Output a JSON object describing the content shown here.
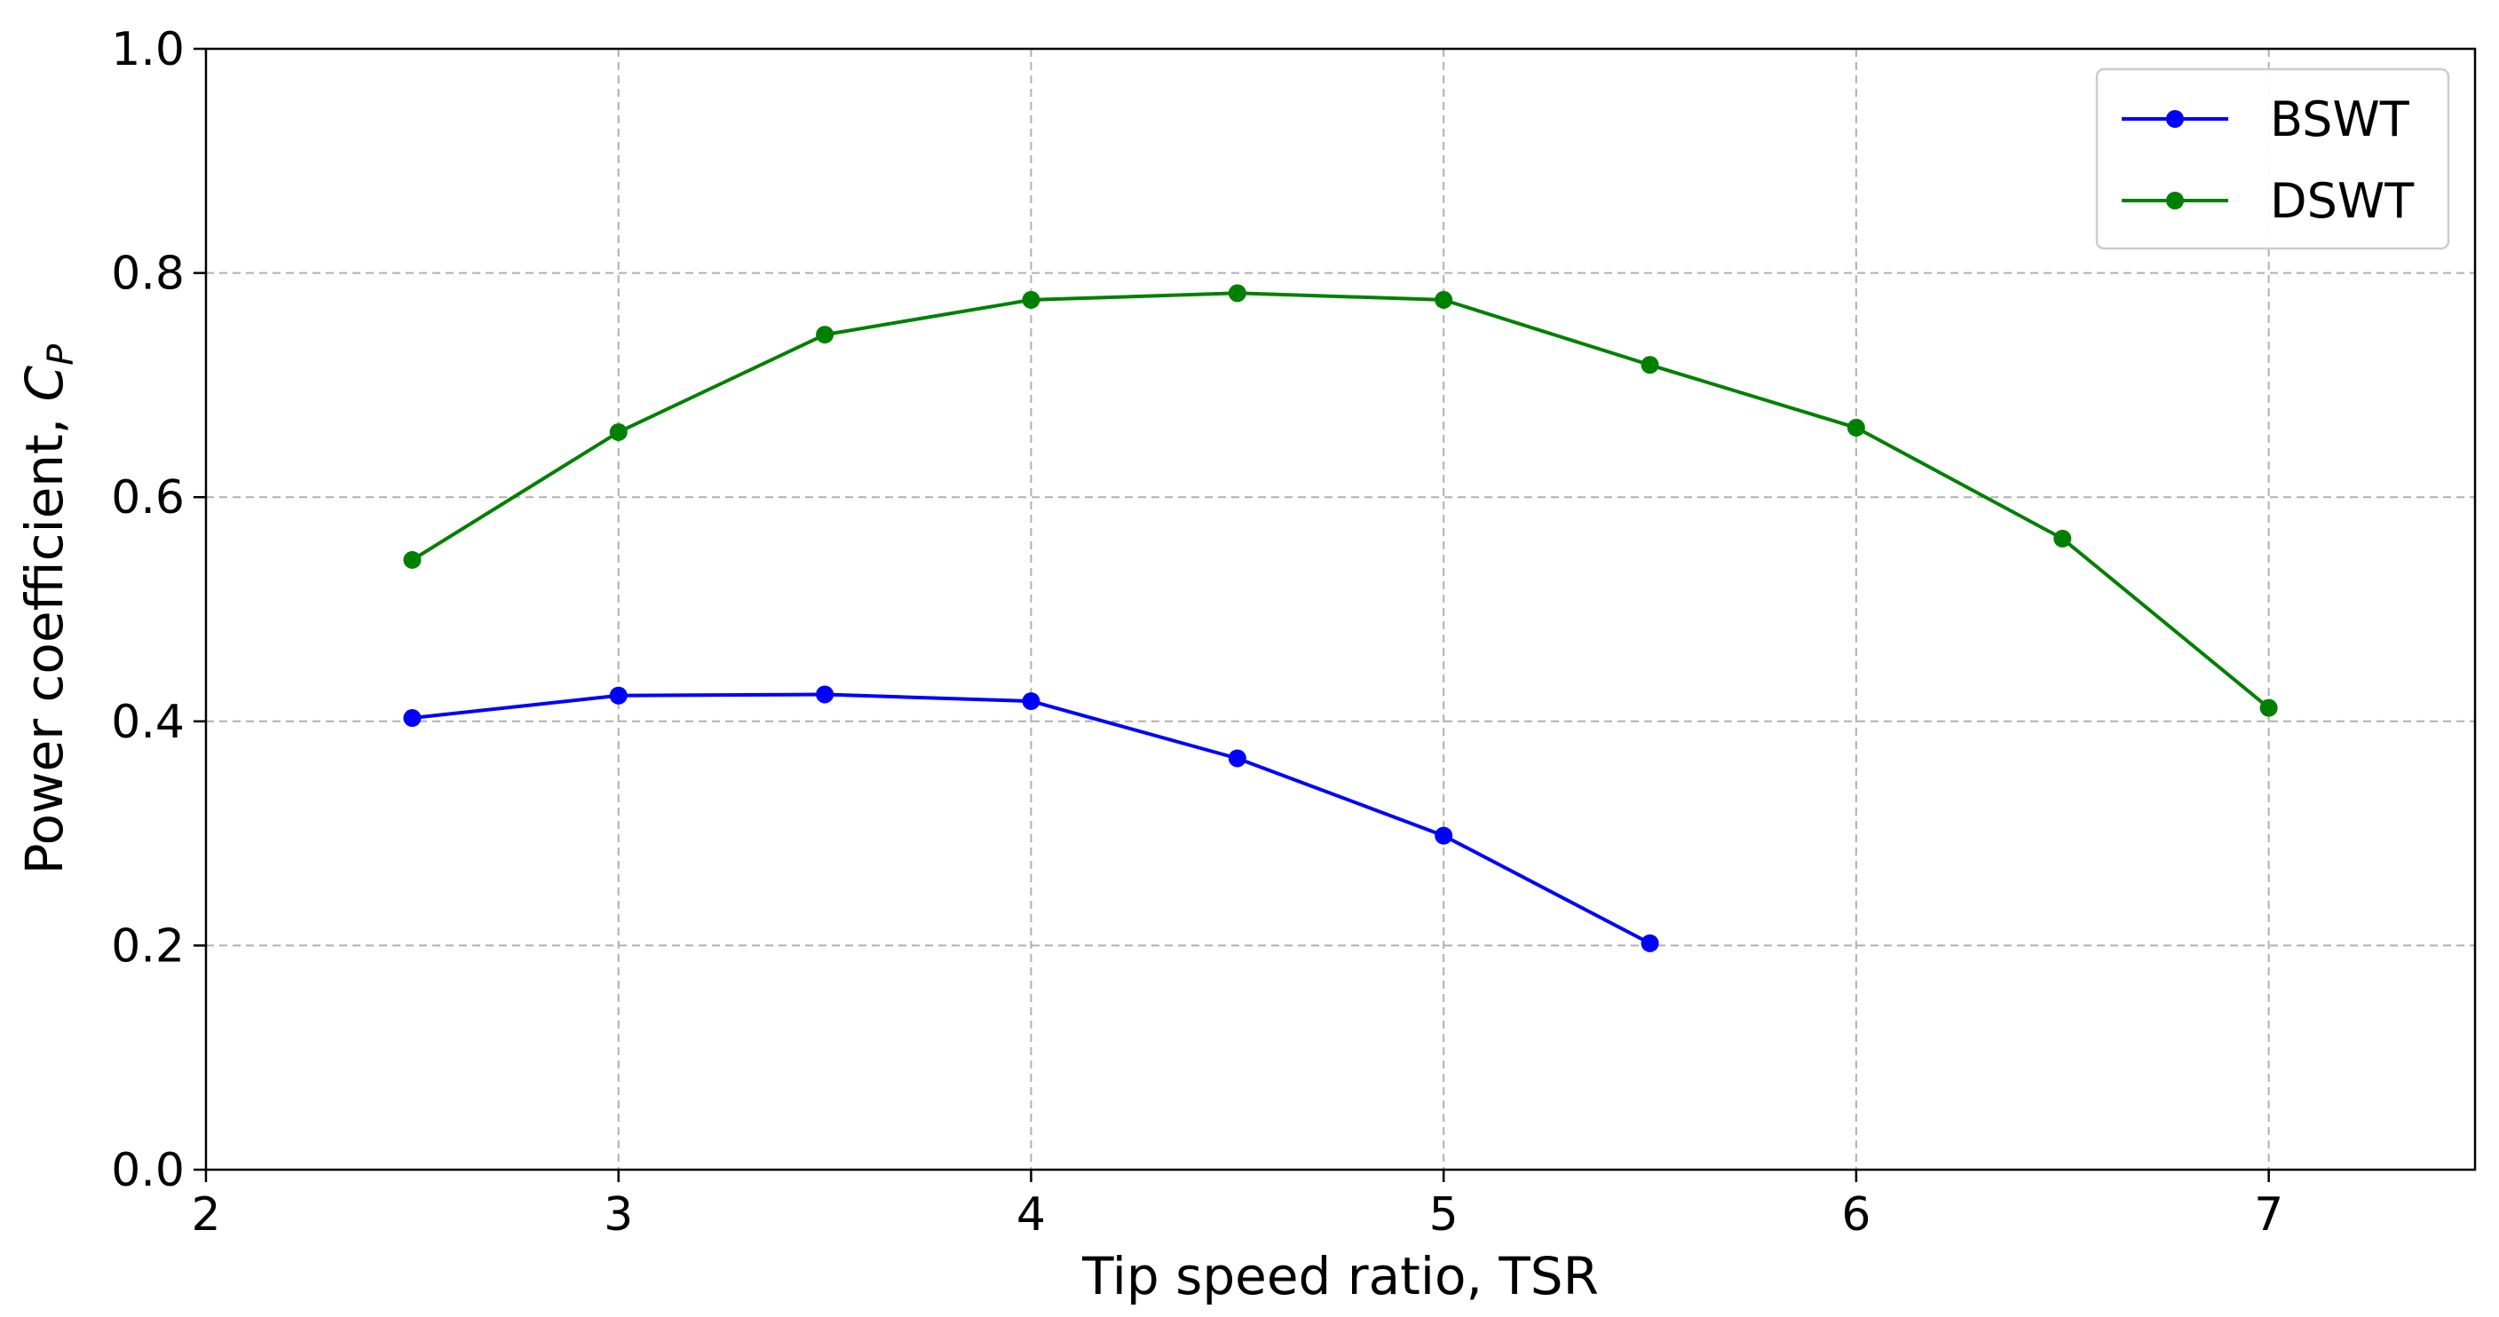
{
  "chart_data": {
    "type": "line",
    "title": "",
    "xlabel": "Tip speed ratio, TSR",
    "ylabel_main": "Power coefficient, ",
    "ylabel_symbol": "C",
    "ylabel_subscript": "P",
    "xlim": [
      2,
      7.5
    ],
    "ylim": [
      0,
      1.0
    ],
    "xticks": [
      2,
      3,
      4,
      5,
      6,
      7
    ],
    "xtick_labels": [
      "2",
      "3",
      "4",
      "5",
      "6",
      "7"
    ],
    "yticks": [
      0,
      0.2,
      0.4,
      0.6,
      0.8,
      1.0
    ],
    "ytick_labels": [
      "0.0",
      "0.2",
      "0.4",
      "0.6",
      "0.8",
      "1.0"
    ],
    "grid": true,
    "legend_position": "top-right",
    "series": [
      {
        "name": "BSWT",
        "color": "#0000ff",
        "x": [
          2.5,
          3.0,
          3.5,
          4.0,
          4.5,
          5.0,
          5.5
        ],
        "y": [
          0.403,
          0.423,
          0.424,
          0.418,
          0.367,
          0.298,
          0.202
        ]
      },
      {
        "name": "DSWT",
        "color": "#008000",
        "x": [
          2.5,
          3.0,
          3.5,
          4.0,
          4.5,
          5.0,
          5.5,
          6.0,
          6.5,
          7.0
        ],
        "y": [
          0.544,
          0.658,
          0.745,
          0.776,
          0.782,
          0.776,
          0.718,
          0.662,
          0.563,
          0.412
        ]
      }
    ]
  }
}
